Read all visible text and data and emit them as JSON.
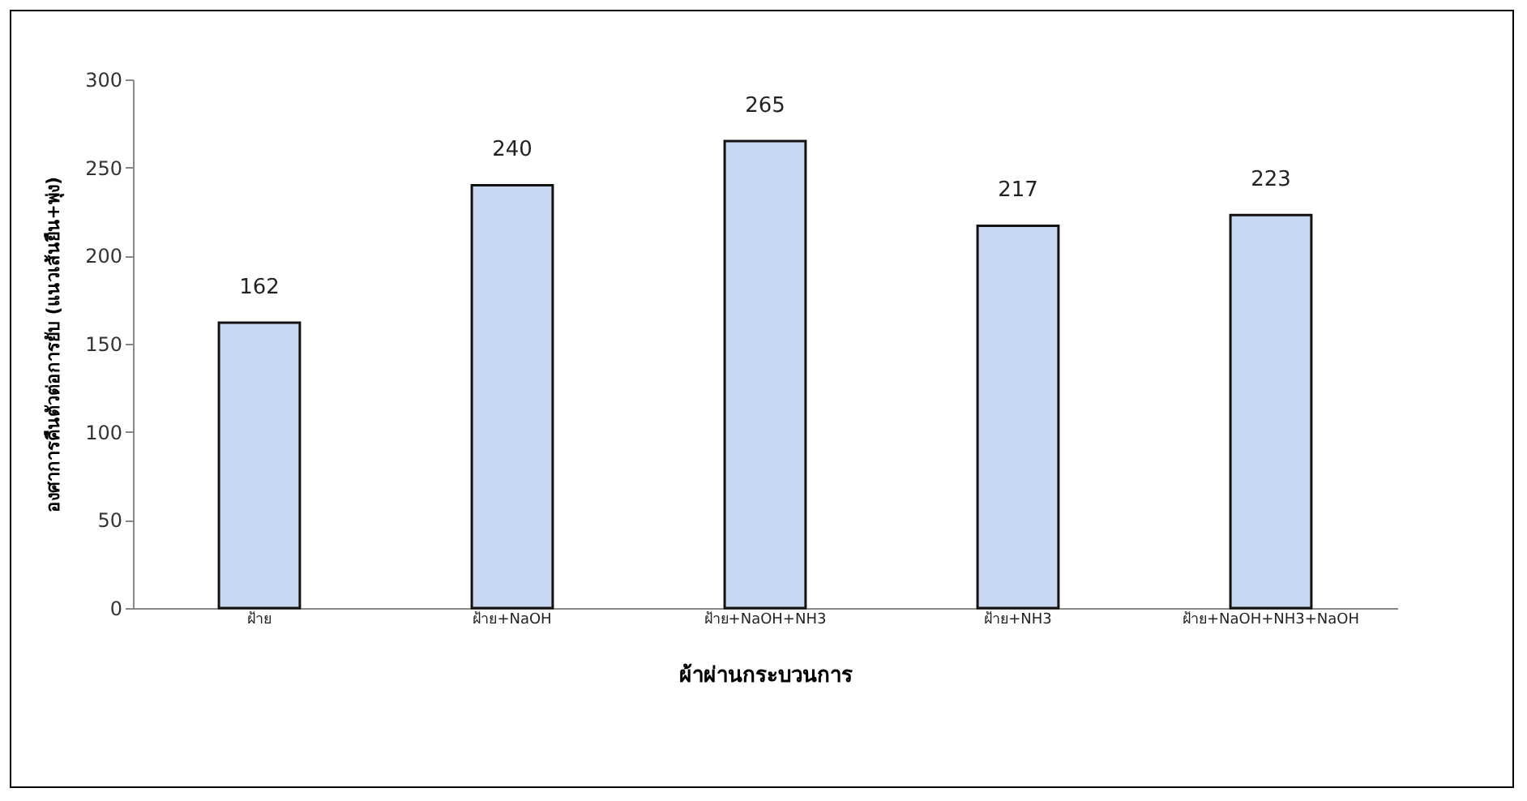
{
  "chart_data": {
    "type": "bar",
    "xlabel": "ผ้าผ่านกระบวนการ",
    "ylabel": "องศาการคืนตัวต่อการยับ (แนวเส้นยืน+พุ่ง)",
    "categories": [
      "ฝ้าย",
      "ฝ้าย+NaOH",
      "ฝ้าย+NaOH+NH3",
      "ฝ้าย+NH3",
      "ฝ้าย+NaOH+NH3+NaOH"
    ],
    "values": [
      162,
      240,
      265,
      217,
      223
    ],
    "color": "#c9d8f2",
    "ylim": [
      0,
      300
    ],
    "yticks": [
      0,
      50,
      100,
      150,
      200,
      250,
      300
    ],
    "grid": false,
    "data_labels": true
  }
}
